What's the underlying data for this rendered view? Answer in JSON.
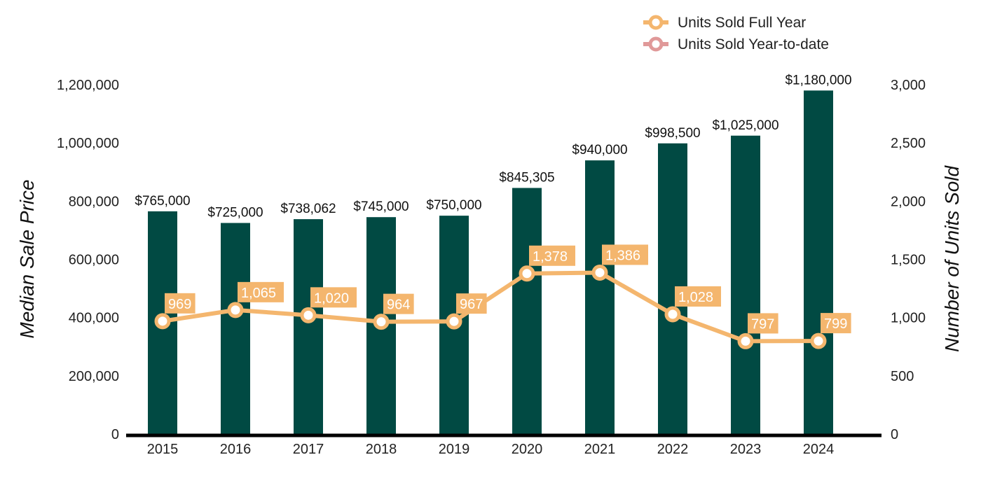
{
  "colors": {
    "bar": "#014a43",
    "line_full_year": "#f4b66e",
    "line_ytd": "#e09999",
    "axis": "#000000"
  },
  "chart_data": {
    "type": "bar+line",
    "categories": [
      "2015",
      "2016",
      "2017",
      "2018",
      "2019",
      "2020",
      "2021",
      "2022",
      "2023",
      "2024"
    ],
    "bar_series": {
      "name": "Median Sale Price",
      "values": [
        765000,
        725000,
        738062,
        745000,
        750000,
        845305,
        940000,
        998500,
        1025000,
        1180000
      ],
      "labels": [
        "$765,000",
        "$725,000",
        "$738,062",
        "$745,000",
        "$750,000",
        "$845,305",
        "$940,000",
        "$998,500",
        "$1,025,000",
        "$1,180,000"
      ]
    },
    "line_series": [
      {
        "name": "Units Sold Full Year",
        "values": [
          969,
          1065,
          1020,
          964,
          967,
          1378,
          1386,
          1028,
          797,
          799
        ],
        "labels": [
          "969",
          "1,065",
          "1,020",
          "964",
          "967",
          "1,378",
          "1,386",
          "1,028",
          "797",
          "799"
        ]
      },
      {
        "name": "Units Sold Year-to-date",
        "values": []
      }
    ],
    "y_left": {
      "label": "Median Sale Price",
      "range": [
        0,
        1200000
      ],
      "ticks": [
        0,
        200000,
        400000,
        600000,
        800000,
        1000000,
        1200000
      ],
      "tick_labels": [
        "0",
        "200,000",
        "400,000",
        "600,000",
        "800,000",
        "1,000,000",
        "1,200,000"
      ]
    },
    "y_right": {
      "label": "Number of Units Sold",
      "range": [
        0,
        3000
      ],
      "ticks": [
        0,
        500,
        1000,
        1500,
        2000,
        2500,
        3000
      ],
      "tick_labels": [
        "0",
        "500",
        "1,000",
        "1,500",
        "2,000",
        "2,500",
        "3,000"
      ]
    },
    "legend": {
      "position": "top-right",
      "entries": [
        "Units Sold Full Year",
        "Units Sold Year-to-date"
      ]
    },
    "grid": false
  }
}
